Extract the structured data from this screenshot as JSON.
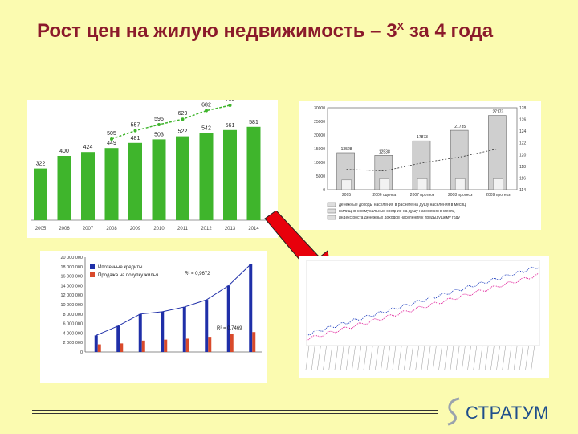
{
  "title": {
    "main": "Рост цен на жилую недвижимость – 3",
    "sup": "X",
    "tail": " за 4 года"
  },
  "logo": {
    "text": "СТРАТУМ"
  },
  "chart_data": [
    {
      "type": "bar",
      "categories": [
        "2005",
        "2006",
        "2007",
        "2008",
        "2009",
        "2010",
        "2011",
        "2012",
        "2013",
        "2014"
      ],
      "series": [
        {
          "values": [
            322,
            400,
            424,
            449,
            481,
            503,
            522,
            542,
            561,
            581
          ]
        },
        {
          "values": [
            null,
            null,
            null,
            505,
            557,
            595,
            629,
            682,
            715,
            null
          ]
        }
      ],
      "bar_labels": [
        "322",
        "400",
        "424",
        "449",
        "481",
        "503",
        "522",
        "542",
        "561",
        "581"
      ],
      "line_labels": [
        "505",
        "557",
        "595",
        "629",
        "682",
        "715"
      ]
    },
    {
      "type": "bar",
      "categories": [
        "2005",
        "2006 оценка",
        "2007 прогноз",
        "2008 прогноз",
        "2009 прогноз"
      ],
      "yticks": [
        "0",
        "5000",
        "10000",
        "15000",
        "20000",
        "25000",
        "30000"
      ],
      "y2ticks": [
        "114",
        "116",
        "118",
        "120",
        "122",
        "124",
        "126",
        "128"
      ],
      "values": [
        13528,
        12538,
        17873,
        21735,
        27173
      ],
      "small_values": [
        3589,
        3998,
        3998,
        3998,
        3998
      ],
      "legend": [
        "денежные доходы населения в расчете на душу населения в месяц",
        "жилищно-коммунальные средние на душу населения в месяц",
        "индекс роста денежных доходов населения к предыдущему году"
      ]
    },
    {
      "type": "bar",
      "yticks": [
        "0",
        "2 000 000",
        "4 000 000",
        "6 000 000",
        "8 000 000",
        "10 000 000",
        "12 000 000",
        "14 000 000",
        "16 000 000",
        "18 000 000",
        "20 000 000"
      ],
      "legend": [
        "Ипотечные кредиты",
        "Продажа на покупку жилья"
      ],
      "annotations": [
        "R² = 0,9672",
        "R² = 0,7469"
      ],
      "values": [
        3500000,
        5500000,
        8000000,
        8500000,
        9500000,
        11000000,
        14000000,
        18500000
      ],
      "values2": [
        1600000,
        1800000,
        2400000,
        2600000,
        2800000,
        3200000,
        3800000,
        4200000
      ]
    },
    {
      "type": "line",
      "series": [
        {
          "values": []
        },
        {
          "values": []
        }
      ]
    }
  ]
}
